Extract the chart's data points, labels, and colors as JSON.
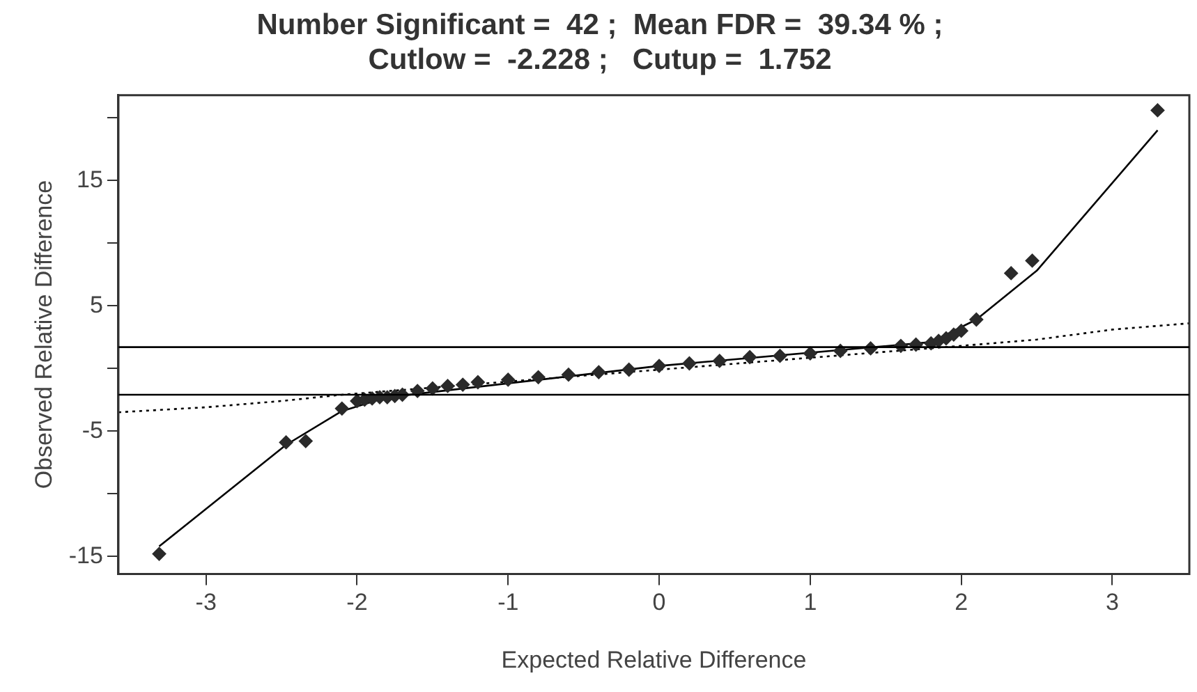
{
  "chart_data": {
    "type": "scatter",
    "title": [
      "Number Significant =  42 ;  Mean FDR =  39.34 % ;",
      "Cutlow =  -2.228 ;   Cutup =  1.752"
    ],
    "xlabel": "Expected Relative Difference",
    "ylabel": "Observed Relative Difference",
    "xlim": [
      -3.58,
      3.51
    ],
    "xticks": [
      -3,
      -2,
      -1,
      0,
      1,
      2,
      3
    ],
    "ylim": [
      -16.4,
      21.8
    ],
    "yticks": [
      {
        "value": -15,
        "label": "-15"
      },
      {
        "value": -10,
        "label": null
      },
      {
        "value": -5,
        "label": "-5"
      },
      {
        "value": 0,
        "label": null
      },
      {
        "value": 5,
        "label": "5"
      },
      {
        "value": 10,
        "label": null
      },
      {
        "value": 15,
        "label": "15"
      },
      {
        "value": 20,
        "label": null
      }
    ],
    "grid": false,
    "legend": false,
    "ref_lines": [
      {
        "axis": "y",
        "value": 1.7,
        "color": "#000000"
      },
      {
        "axis": "y",
        "value": -2.1,
        "color": "#000000"
      }
    ],
    "series": [
      {
        "type": "line",
        "color": "#000000",
        "line_style": "dotted",
        "marker": "none",
        "x": [
          -3.58,
          -3.0,
          -2.5,
          -2.1,
          2.1,
          2.5,
          3.0,
          3.51
        ],
        "values": [
          -3.5,
          -3.1,
          -2.6,
          -2.1,
          1.9,
          2.3,
          3.1,
          3.6
        ]
      },
      {
        "type": "line",
        "color": "#000000",
        "line_style": "solid",
        "marker": "none",
        "x": [
          -3.31,
          -2.47,
          -2.1,
          -1.8,
          0,
          1.8,
          2.1,
          2.5,
          3.3
        ],
        "values": [
          -14.2,
          -6.1,
          -3.4,
          -2.3,
          0.2,
          2.1,
          3.9,
          7.8,
          19
        ]
      },
      {
        "color": "#2a2a2a",
        "marker": "diamond",
        "x": [
          -3.31,
          -2.47,
          -2.34,
          -2.1,
          -2.0,
          -1.95,
          -1.9,
          -1.85,
          -1.8,
          -1.75,
          -1.7,
          -1.6,
          -1.5,
          -1.4,
          -1.3,
          -1.2,
          -1.0,
          -0.8,
          -0.6,
          -0.4,
          -0.2,
          0,
          0.2,
          0.4,
          0.6,
          0.8,
          1.0,
          1.2,
          1.4,
          1.6,
          1.7,
          1.8,
          1.85,
          1.9,
          1.95,
          2.0,
          2.1,
          2.33,
          2.47,
          3.3
        ],
        "values": [
          -14.8,
          -5.9,
          -5.8,
          -3.2,
          -2.6,
          -2.5,
          -2.4,
          -2.3,
          -2.3,
          -2.2,
          -2.1,
          -1.8,
          -1.6,
          -1.4,
          -1.3,
          -1.1,
          -0.9,
          -0.7,
          -0.5,
          -0.3,
          -0.1,
          0.2,
          0.4,
          0.6,
          0.9,
          1.0,
          1.2,
          1.4,
          1.6,
          1.8,
          1.9,
          2.0,
          2.2,
          2.4,
          2.7,
          3.0,
          3.9,
          7.6,
          8.6,
          20.6
        ]
      }
    ]
  }
}
